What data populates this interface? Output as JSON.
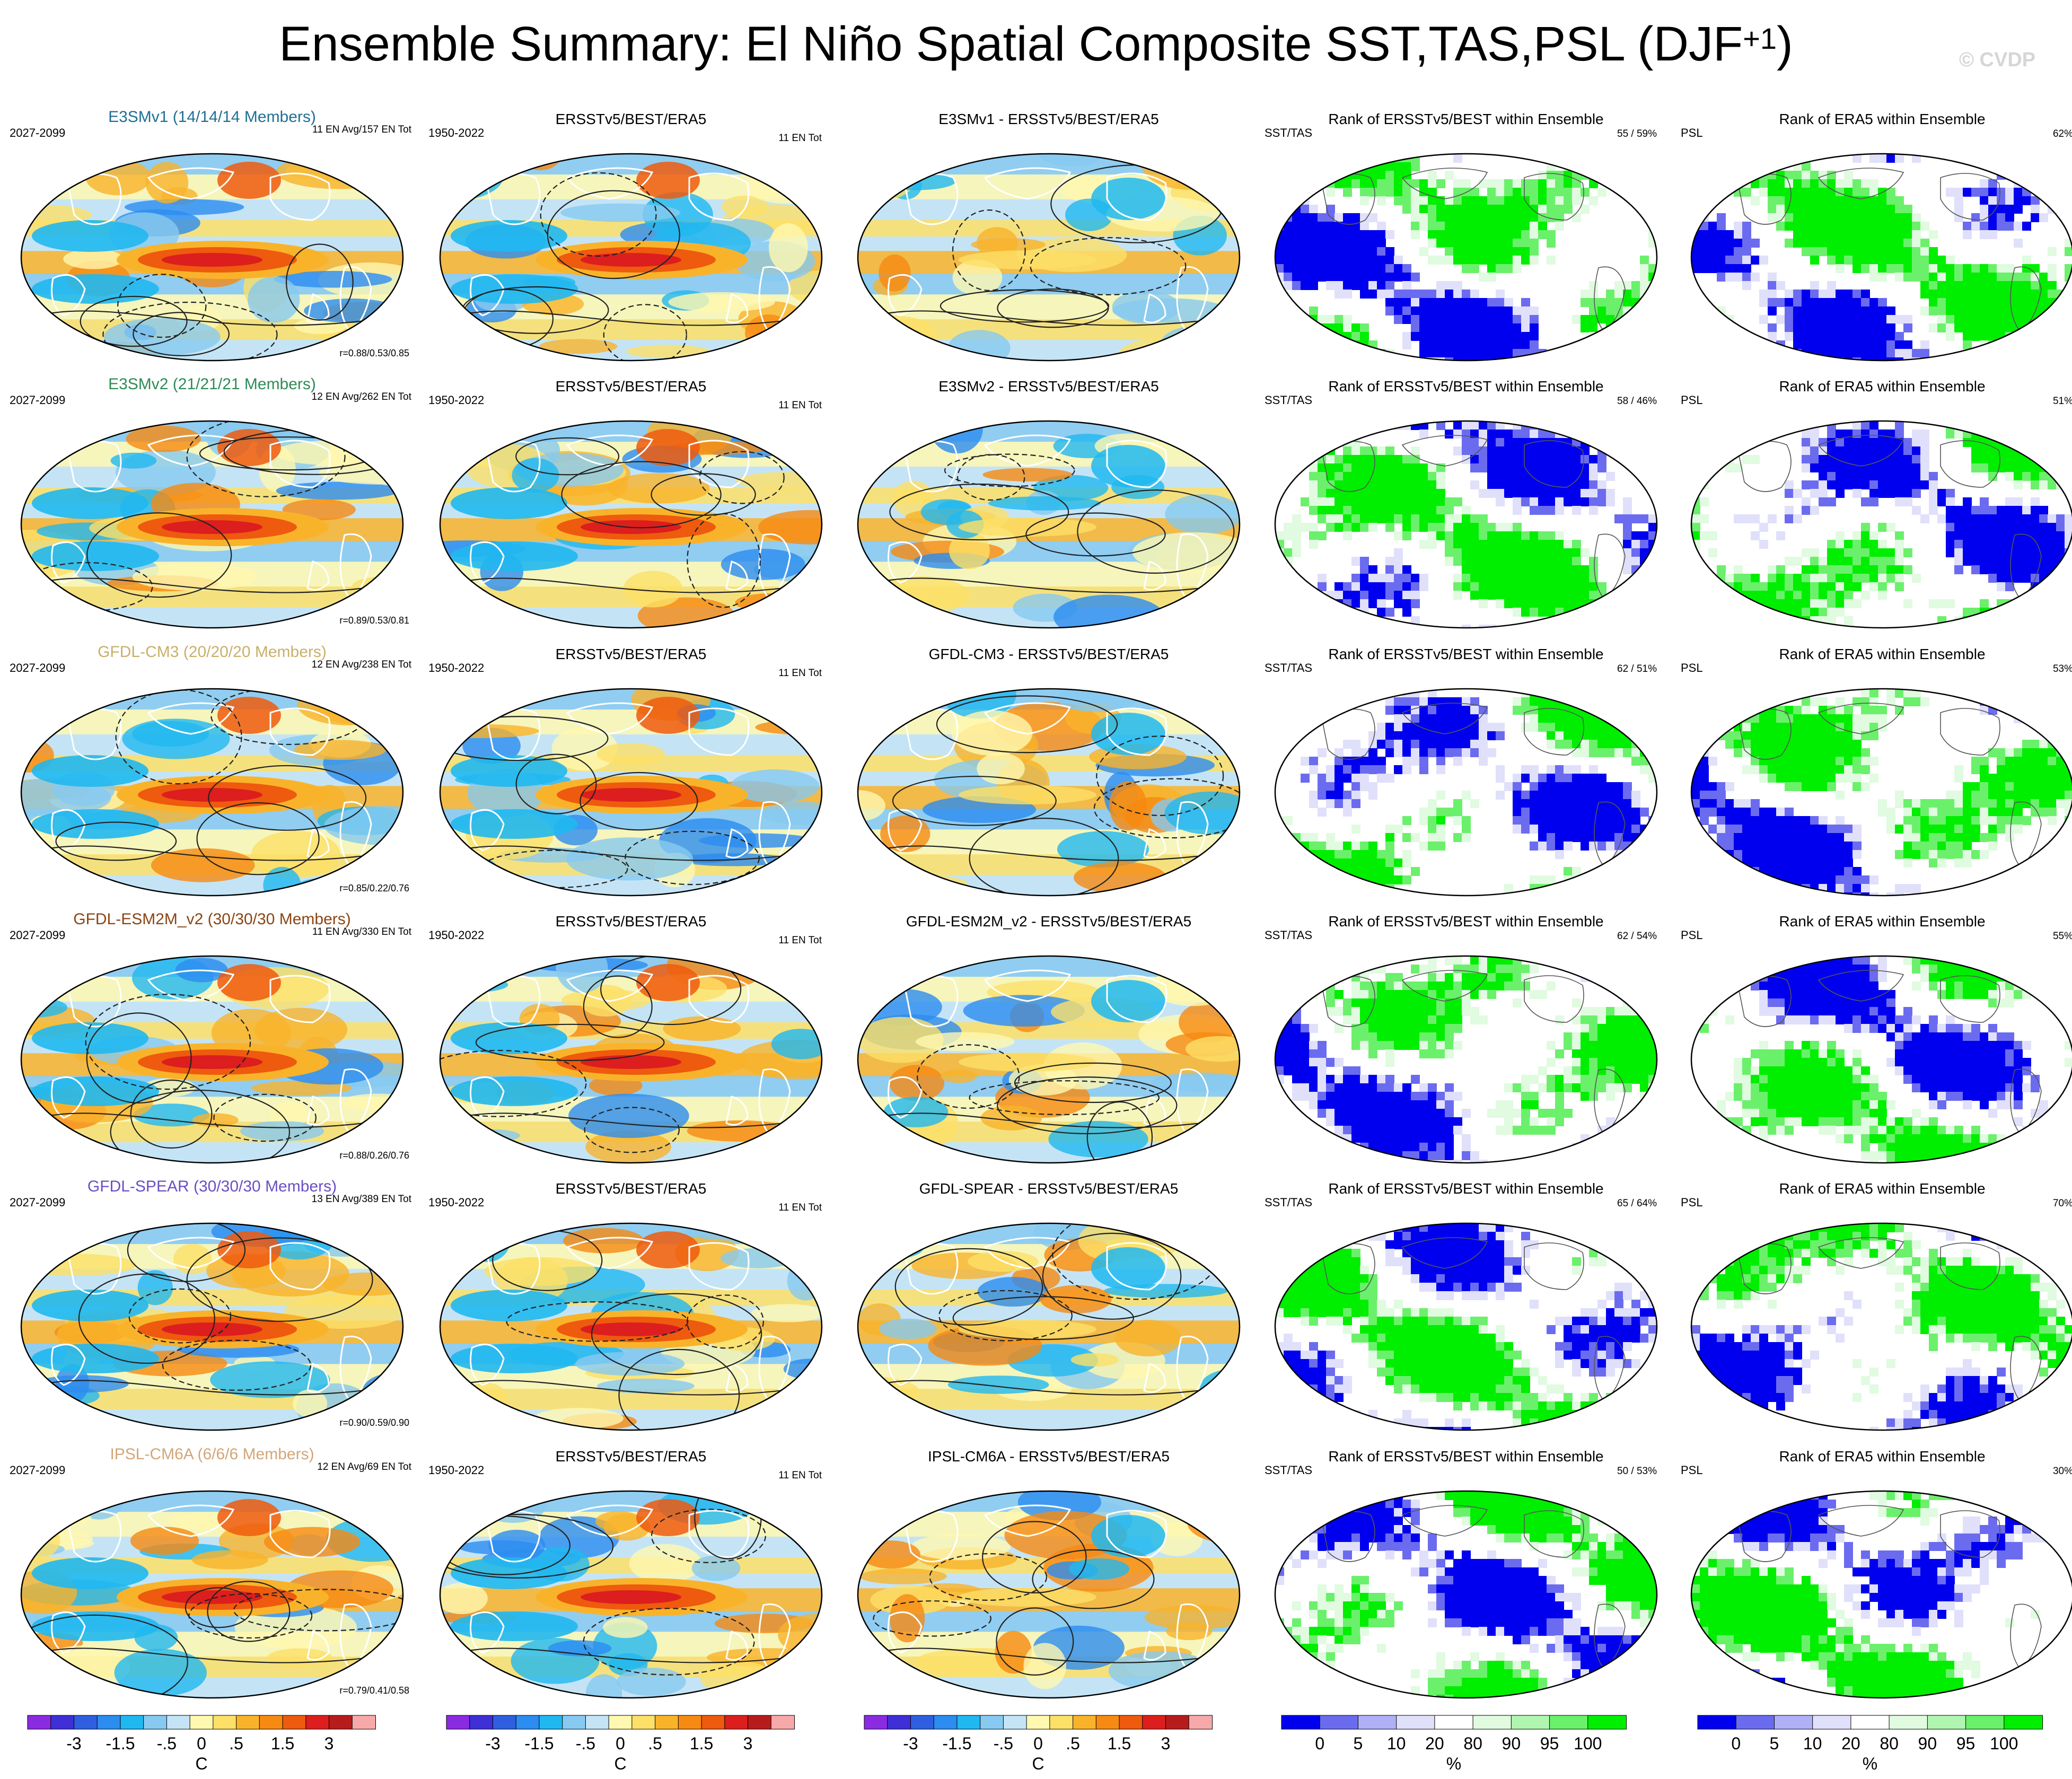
{
  "title": {
    "text": "Ensemble Summary: El Niño Spatial Composite SST,TAS,PSL (DJF",
    "sup": "+1",
    "close": ")"
  },
  "watermark": "© CVDP",
  "colors": {
    "model_title": [
      "#1f6f93",
      "#2e8b57",
      "#c8b06a",
      "#8b4513",
      "#6a4fc4",
      "#d2a679"
    ],
    "anomaly_scale": [
      "#8a2be2",
      "#3f2fd6",
      "#2f5fe0",
      "#2c8cf0",
      "#20b8f0",
      "#87c9f0",
      "#c4e4f6",
      "#fff8b0",
      "#fde068",
      "#f9b32a",
      "#f68a12",
      "#ee5a0e",
      "#dc1e1e",
      "#b71c1c",
      "#f7a9a9"
    ],
    "rank_scale": [
      "#0000ee",
      "#6b6bf0",
      "#b0b0f6",
      "#e0e0fb",
      "#ffffff",
      "#e0fbe0",
      "#b0f5b0",
      "#6bf06b",
      "#00ee00"
    ]
  },
  "rows": [
    {
      "model": "E3SMv1 (14/14/14 Members)",
      "period": "2027-2099",
      "en_info": "11 EN Avg/157 EN Tot",
      "corr": "r=0.88/0.53/0.85",
      "obs_title": "ERSSTv5/BEST/ERA5",
      "obs_period": "1950-2022",
      "obs_info": "11 EN Tot",
      "diff_title": "E3SMv1 - ERSSTv5/BEST/ERA5",
      "rank_sst_title": "Rank of ERSSTv5/BEST within Ensemble",
      "rank_sst_label": "SST/TAS",
      "rank_sst_pct": "55 /  59%",
      "rank_psl_title": "Rank of ERA5 within Ensemble",
      "rank_psl_label": "PSL",
      "rank_psl_pct": "62%"
    },
    {
      "model": "E3SMv2 (21/21/21 Members)",
      "period": "2027-2099",
      "en_info": "12 EN Avg/262 EN Tot",
      "corr": "r=0.89/0.53/0.81",
      "obs_title": "ERSSTv5/BEST/ERA5",
      "obs_period": "1950-2022",
      "obs_info": "11 EN Tot",
      "diff_title": "E3SMv2 - ERSSTv5/BEST/ERA5",
      "rank_sst_title": "Rank of ERSSTv5/BEST within Ensemble",
      "rank_sst_label": "SST/TAS",
      "rank_sst_pct": "58 /  46%",
      "rank_psl_title": "Rank of ERA5 within Ensemble",
      "rank_psl_label": "PSL",
      "rank_psl_pct": "51%"
    },
    {
      "model": "GFDL-CM3 (20/20/20 Members)",
      "period": "2027-2099",
      "en_info": "12 EN Avg/238 EN Tot",
      "corr": "r=0.85/0.22/0.76",
      "obs_title": "ERSSTv5/BEST/ERA5",
      "obs_period": "1950-2022",
      "obs_info": "11 EN Tot",
      "diff_title": "GFDL-CM3 - ERSSTv5/BEST/ERA5",
      "rank_sst_title": "Rank of ERSSTv5/BEST within Ensemble",
      "rank_sst_label": "SST/TAS",
      "rank_sst_pct": "62 /  51%",
      "rank_psl_title": "Rank of ERA5 within Ensemble",
      "rank_psl_label": "PSL",
      "rank_psl_pct": "53%"
    },
    {
      "model": "GFDL-ESM2M_v2 (30/30/30 Members)",
      "period": "2027-2099",
      "en_info": "11 EN Avg/330 EN Tot",
      "corr": "r=0.88/0.26/0.76",
      "obs_title": "ERSSTv5/BEST/ERA5",
      "obs_period": "1950-2022",
      "obs_info": "11 EN Tot",
      "diff_title": "GFDL-ESM2M_v2 - ERSSTv5/BEST/ERA5",
      "rank_sst_title": "Rank of ERSSTv5/BEST within Ensemble",
      "rank_sst_label": "SST/TAS",
      "rank_sst_pct": "62 /  54%",
      "rank_psl_title": "Rank of ERA5 within Ensemble",
      "rank_psl_label": "PSL",
      "rank_psl_pct": "55%"
    },
    {
      "model": "GFDL-SPEAR (30/30/30 Members)",
      "period": "2027-2099",
      "en_info": "13 EN Avg/389 EN Tot",
      "corr": "r=0.90/0.59/0.90",
      "obs_title": "ERSSTv5/BEST/ERA5",
      "obs_period": "1950-2022",
      "obs_info": "11 EN Tot",
      "diff_title": "GFDL-SPEAR - ERSSTv5/BEST/ERA5",
      "rank_sst_title": "Rank of ERSSTv5/BEST within Ensemble",
      "rank_sst_label": "SST/TAS",
      "rank_sst_pct": "65 /  64%",
      "rank_psl_title": "Rank of ERA5 within Ensemble",
      "rank_psl_label": "PSL",
      "rank_psl_pct": "70%"
    },
    {
      "model": "IPSL-CM6A (6/6/6 Members)",
      "period": "2027-2099",
      "en_info": "12 EN Avg/69 EN Tot",
      "corr": "r=0.79/0.41/0.58",
      "obs_title": "ERSSTv5/BEST/ERA5",
      "obs_period": "1950-2022",
      "obs_info": "11 EN Tot",
      "diff_title": "IPSL-CM6A - ERSSTv5/BEST/ERA5",
      "rank_sst_title": "Rank of ERSSTv5/BEST within Ensemble",
      "rank_sst_label": "SST/TAS",
      "rank_sst_pct": "50 /  53%",
      "rank_psl_title": "Rank of ERA5 within Ensemble",
      "rank_psl_label": "PSL",
      "rank_psl_pct": "30%"
    }
  ],
  "colorbars": [
    {
      "type": "anomaly",
      "ticks": [
        "-3",
        "-1.5",
        "-.5",
        "0",
        ".5",
        "1.5",
        "3"
      ],
      "unit": "C"
    },
    {
      "type": "anomaly",
      "ticks": [
        "-3",
        "-1.5",
        "-.5",
        "0",
        ".5",
        "1.5",
        "3"
      ],
      "unit": "C"
    },
    {
      "type": "anomaly",
      "ticks": [
        "-3",
        "-1.5",
        "-.5",
        "0",
        ".5",
        "1.5",
        "3"
      ],
      "unit": "C"
    },
    {
      "type": "rank",
      "ticks": [
        "0",
        "5",
        "10",
        "20",
        "80",
        "90",
        "95",
        "100"
      ],
      "unit": "%"
    },
    {
      "type": "rank",
      "ticks": [
        "0",
        "5",
        "10",
        "20",
        "80",
        "90",
        "95",
        "100"
      ],
      "unit": "%"
    }
  ],
  "chart_data": {
    "type": "heatmap",
    "description_grid": "6 ensembles x 5 panels of global Robinson-projection maps",
    "anomaly_colorbar": {
      "units": "C",
      "levels": [
        -4,
        -3,
        -2,
        -1.5,
        -1,
        -0.5,
        -0.25,
        0,
        0.25,
        0.5,
        1,
        1.5,
        2,
        3,
        4
      ],
      "labeled_ticks": [
        -3,
        -1.5,
        -0.5,
        0,
        0.5,
        1.5,
        3
      ]
    },
    "rank_colorbar": {
      "units": "%",
      "levels": [
        0,
        5,
        10,
        20,
        80,
        90,
        95,
        100
      ]
    },
    "pattern_correlations": [
      {
        "model": "E3SMv1",
        "sst": 0.88,
        "tas": 0.53,
        "psl": 0.85
      },
      {
        "model": "E3SMv2",
        "sst": 0.89,
        "tas": 0.53,
        "psl": 0.81
      },
      {
        "model": "GFDL-CM3",
        "sst": 0.85,
        "tas": 0.22,
        "psl": 0.76
      },
      {
        "model": "GFDL-ESM2M_v2",
        "sst": 0.88,
        "tas": 0.26,
        "psl": 0.76
      },
      {
        "model": "GFDL-SPEAR",
        "sst": 0.9,
        "tas": 0.59,
        "psl": 0.9
      },
      {
        "model": "IPSL-CM6A",
        "sst": 0.79,
        "tas": 0.41,
        "psl": 0.58
      }
    ],
    "rank_within_ensemble_pct": [
      {
        "model": "E3SMv1",
        "sst": 55,
        "tas": 59,
        "psl": 62
      },
      {
        "model": "E3SMv2",
        "sst": 58,
        "tas": 46,
        "psl": 51
      },
      {
        "model": "GFDL-CM3",
        "sst": 62,
        "tas": 51,
        "psl": 53
      },
      {
        "model": "GFDL-ESM2M_v2",
        "sst": 62,
        "tas": 54,
        "psl": 55
      },
      {
        "model": "GFDL-SPEAR",
        "sst": 65,
        "tas": 64,
        "psl": 70
      },
      {
        "model": "IPSL-CM6A",
        "sst": 50,
        "tas": 53,
        "psl": 30
      }
    ]
  }
}
